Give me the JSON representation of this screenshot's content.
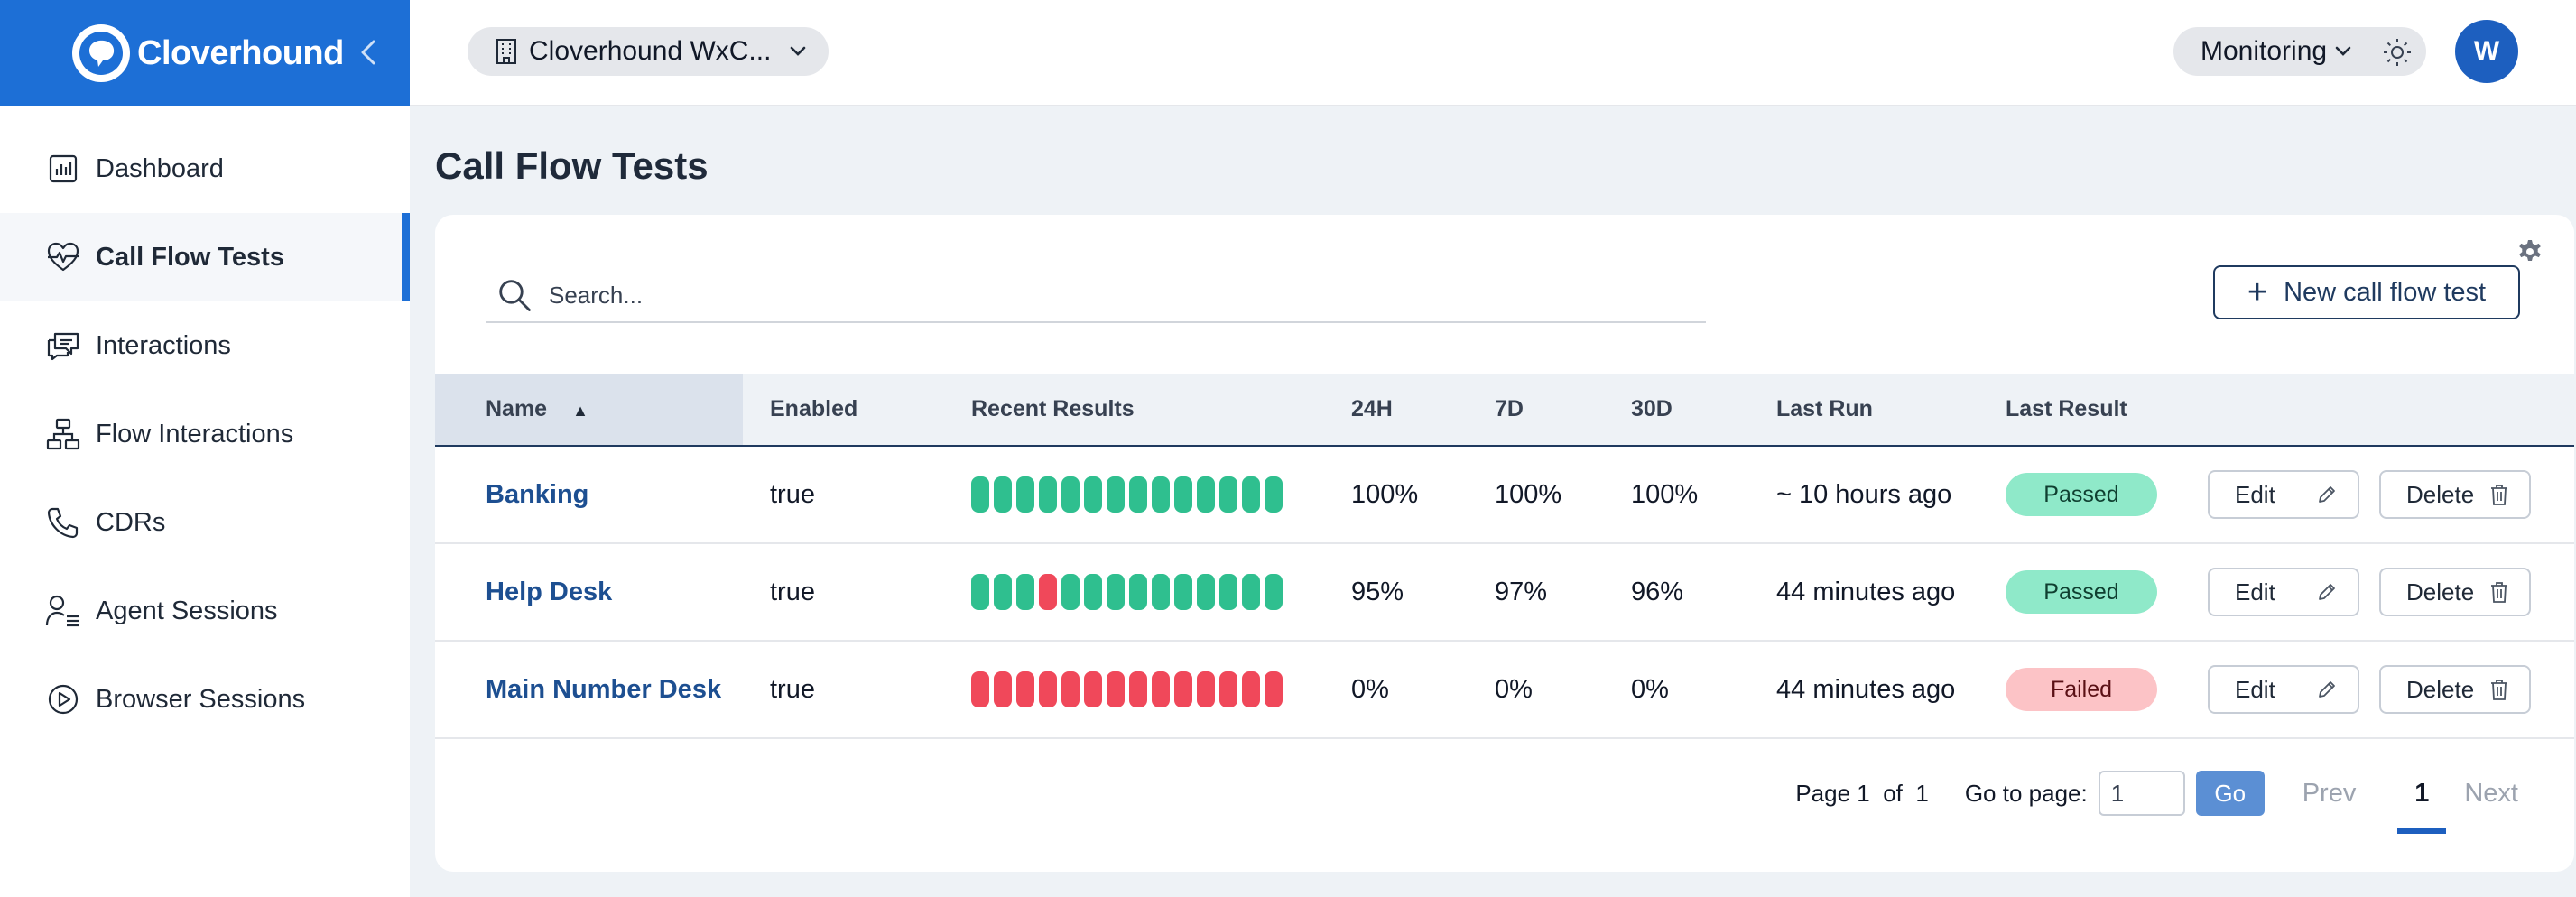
{
  "brand": {
    "name": "Cloverhound"
  },
  "colors": {
    "primary": "#1d6fd6",
    "pass": "#2fbf8f",
    "fail": "#f0485a"
  },
  "sidebar": {
    "items": [
      {
        "label": "Dashboard",
        "icon": "dashboard-chart-icon",
        "active": false
      },
      {
        "label": "Call Flow Tests",
        "icon": "heart-pulse-icon",
        "active": true
      },
      {
        "label": "Interactions",
        "icon": "chat-bubbles-icon",
        "active": false
      },
      {
        "label": "Flow Interactions",
        "icon": "flow-tree-icon",
        "active": false
      },
      {
        "label": "CDRs",
        "icon": "phone-icon",
        "active": false
      },
      {
        "label": "Agent Sessions",
        "icon": "agent-list-icon",
        "active": false
      },
      {
        "label": "Browser Sessions",
        "icon": "play-circle-icon",
        "active": false
      }
    ]
  },
  "header": {
    "org": "Cloverhound WxC...",
    "mode": "Monitoring",
    "avatar": "W"
  },
  "main": {
    "title": "Call Flow Tests",
    "search_placeholder": "Search...",
    "new_button": "New call flow test",
    "columns": {
      "name": "Name",
      "enabled": "Enabled",
      "recent": "Recent Results",
      "h24": "24H",
      "d7": "7D",
      "d30": "30D",
      "last_run": "Last Run",
      "last_result": "Last Result"
    },
    "rows": [
      {
        "name": "Banking",
        "enabled": "true",
        "recent": [
          "pass",
          "pass",
          "pass",
          "pass",
          "pass",
          "pass",
          "pass",
          "pass",
          "pass",
          "pass",
          "pass",
          "pass",
          "pass",
          "pass"
        ],
        "h24": "100%",
        "d7": "100%",
        "d30": "100%",
        "last_run": "~ 10 hours ago",
        "last_result": "Passed",
        "status": "passed",
        "edit": "Edit",
        "delete": "Delete"
      },
      {
        "name": "Help Desk",
        "enabled": "true",
        "recent": [
          "pass",
          "pass",
          "pass",
          "fail",
          "pass",
          "pass",
          "pass",
          "pass",
          "pass",
          "pass",
          "pass",
          "pass",
          "pass",
          "pass"
        ],
        "h24": "95%",
        "d7": "97%",
        "d30": "96%",
        "last_run": "44 minutes ago",
        "last_result": "Passed",
        "status": "passed",
        "edit": "Edit",
        "delete": "Delete"
      },
      {
        "name": "Main Number Desk",
        "enabled": "true",
        "recent": [
          "fail",
          "fail",
          "fail",
          "fail",
          "fail",
          "fail",
          "fail",
          "fail",
          "fail",
          "fail",
          "fail",
          "fail",
          "fail",
          "fail"
        ],
        "h24": "0%",
        "d7": "0%",
        "d30": "0%",
        "last_run": "44 minutes ago",
        "last_result": "Failed",
        "status": "failed",
        "edit": "Edit",
        "delete": "Delete"
      }
    ],
    "pagination": {
      "page_label": "Page",
      "page": "1",
      "of_label": "of",
      "total": "1",
      "goto_label": "Go to page:",
      "goto_value": "1",
      "go": "Go",
      "prev": "Prev",
      "current": "1",
      "next": "Next"
    }
  }
}
